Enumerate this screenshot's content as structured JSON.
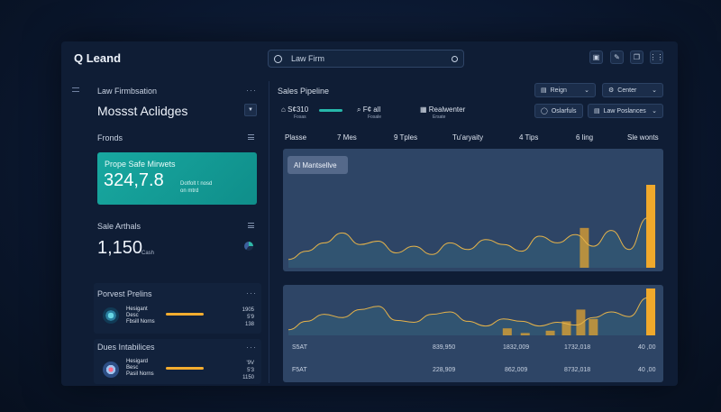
{
  "header": {
    "logo": "Q Leand",
    "search_value": "Law Firm",
    "toolbar_icons": [
      "save-icon",
      "edit-icon",
      "copy-icon",
      "settings-icon"
    ]
  },
  "left": {
    "section_label": "Law Firmbsation",
    "main_title": "Mossst Aclidges",
    "fronds_label": "Fronds",
    "teal_card": {
      "title": "Prope Safe Mirwets",
      "value": "324,7.8",
      "note_line1": "Dotfolt t nosd",
      "note_line2": "on mtrd"
    },
    "sale_label": "Sale Arthals",
    "sale_value": "1,150",
    "sale_unit": "Cash",
    "panel1": {
      "title": "Porvest Prelins",
      "row_name": "Hesigant",
      "row_sub1": "Desc",
      "row_sub2": "Fbsill Norns",
      "numbers": [
        "1905",
        "5'9",
        "138"
      ],
      "bar_fill": 0.8
    },
    "panel2": {
      "title": "Dues Intabilices",
      "row_name": "Hesigard",
      "row_sub1": "Besc",
      "row_sub2": "Pasil Norns",
      "numbers": [
        "'9V",
        "5'3",
        "1150"
      ],
      "bar_fill": 0.8
    }
  },
  "pipeline": {
    "title": "Sales Pipeline",
    "pills": [
      "Reign",
      "Center",
      "Oslarfuls",
      "Law Poslances"
    ],
    "kpis": [
      {
        "value": "S¢310",
        "sub": "Fosas"
      },
      {
        "value": "F¢ all",
        "sub": "Fosale"
      },
      {
        "value": "Realwenter",
        "sub": "Ersate"
      }
    ],
    "columns": [
      "Plasse",
      "7 Mes",
      "9 Tples",
      "Tu'aryaity",
      "4 Tips",
      "6 ling",
      "Sle wonts"
    ],
    "chart_badge": "Al Mantsellve",
    "footer_row1": [
      "S5AT",
      "839,950",
      "1832,009",
      "1732,018",
      "40 ,00"
    ],
    "footer_row2": [
      "F5AT",
      "228,909",
      "862,009",
      "8732,018",
      "40 ,00"
    ]
  },
  "chart_data": [
    {
      "type": "area",
      "x": [
        0,
        1,
        2,
        3,
        4,
        5,
        6,
        7,
        8,
        9,
        10,
        11,
        12,
        13,
        14,
        15,
        16,
        17,
        18,
        19,
        20
      ],
      "values": [
        0.1,
        0.2,
        0.3,
        0.42,
        0.28,
        0.32,
        0.18,
        0.26,
        0.16,
        0.3,
        0.22,
        0.34,
        0.28,
        0.2,
        0.38,
        0.3,
        0.4,
        0.26,
        0.45,
        0.22,
        0.6
      ],
      "bars": [
        {
          "x": 16.5,
          "value": 0.48
        },
        {
          "x": 20.2,
          "value": 1.0
        }
      ],
      "colors": {
        "line": "#e6b34a",
        "bar": "#f0a92c",
        "fill": "#35607a"
      }
    },
    {
      "type": "area",
      "x": [
        0,
        1,
        2,
        3,
        4,
        5,
        6,
        7,
        8,
        9,
        10,
        11,
        12,
        13,
        14,
        15,
        16,
        17,
        18,
        19,
        20
      ],
      "values": [
        0.12,
        0.3,
        0.45,
        0.38,
        0.55,
        0.62,
        0.32,
        0.28,
        0.45,
        0.5,
        0.3,
        0.2,
        0.35,
        0.3,
        0.2,
        0.28,
        0.22,
        0.38,
        0.5,
        0.4,
        0.8
      ],
      "bars": [
        {
          "x": 12.2,
          "value": 0.15
        },
        {
          "x": 13.2,
          "value": 0.05
        },
        {
          "x": 14.6,
          "value": 0.1
        },
        {
          "x": 15.5,
          "value": 0.3
        },
        {
          "x": 16.3,
          "value": 0.55
        },
        {
          "x": 17.0,
          "value": 0.35
        },
        {
          "x": 20.2,
          "value": 1.0
        }
      ],
      "colors": {
        "line": "#e6b34a",
        "bar": "#f0a92c",
        "fill": "#35607a"
      }
    }
  ]
}
